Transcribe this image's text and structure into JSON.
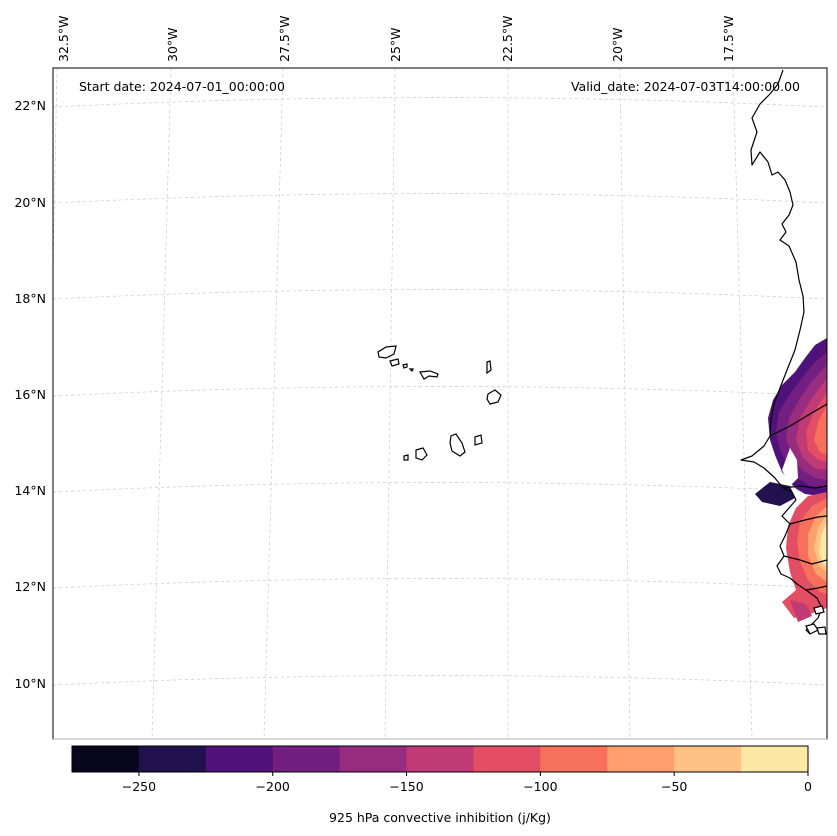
{
  "annotations": {
    "start_date": "Start date: 2024-07-01_00:00:00",
    "valid_date": "Valid_date: 2024-07-03T14:00:00.00"
  },
  "axes": {
    "lon_labels": [
      "32.5°W",
      "30°W",
      "27.5°W",
      "25°W",
      "22.5°W",
      "20°W",
      "17.5°W"
    ],
    "lat_labels": [
      "22°N",
      "20°N",
      "18°N",
      "16°N",
      "14°N",
      "12°N",
      "10°N"
    ],
    "grid": true
  },
  "colorbar": {
    "label": "925 hPa convective inhibition (j/Kg)",
    "tick_labels": [
      "−250",
      "−200",
      "−150",
      "−100",
      "−50",
      "0"
    ],
    "range": [
      -275,
      0
    ],
    "step": 25,
    "colors": [
      "#07061c",
      "#21114e",
      "#4f127b",
      "#721f81",
      "#982d80",
      "#c03a76",
      "#e34e65",
      "#f7705c",
      "#fe9f6d",
      "#fec287",
      "#fde9a6"
    ]
  },
  "map": {
    "projection": "lambert-conformal",
    "coastline_color": "#000000",
    "gridline_color": "#c8c8c8"
  }
}
